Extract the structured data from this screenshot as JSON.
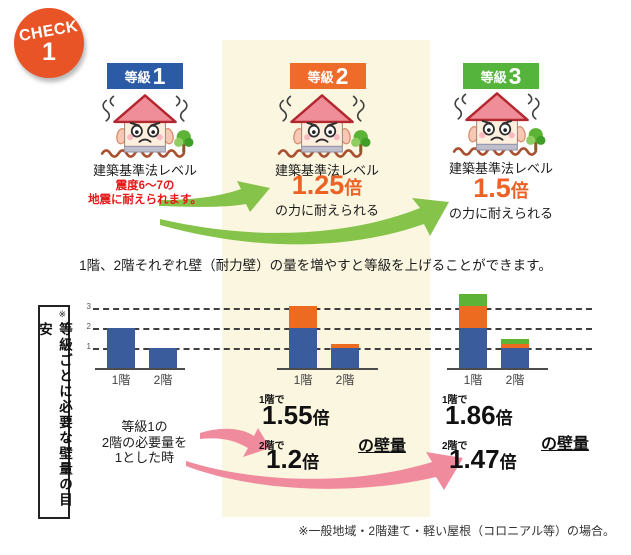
{
  "badge_check": {
    "line1": "CHECK",
    "line2": "1"
  },
  "grades": [
    {
      "label": "等級",
      "number": "1",
      "badge_color": "#2b5aa7",
      "level_text": "建築基準法レベル",
      "sub_red_line1": "震度6〜7の",
      "sub_red_line2": "地震に耐えられます。"
    },
    {
      "label": "等級",
      "number": "2",
      "badge_color": "#ee6b2a",
      "level_text": "建築基準法レベル",
      "multiplier": "1.25",
      "multiplier_unit": "倍",
      "multiplier_desc": "の力に耐えられる"
    },
    {
      "label": "等級",
      "number": "3",
      "badge_color": "#55b43b",
      "level_text": "建築基準法レベル",
      "multiplier": "1.5",
      "multiplier_unit": "倍",
      "multiplier_desc": "の力に耐えられる"
    }
  ],
  "middle_caption": "1階、2階それぞれ壁（耐力壁）の量を増やすと等級を上げることができます。",
  "side_box": {
    "note_mark": "※",
    "text": "等級ごとに必要な壁量の目安"
  },
  "baseline_note": {
    "line1": "等級1の",
    "line2": "2階の必要量を",
    "line3": "1とした時"
  },
  "wall_amounts": {
    "grade2": {
      "floor1_label": "1階で",
      "floor1_value": "1.55",
      "floor2_label": "2階で",
      "floor2_value": "1.2",
      "unit": "倍",
      "suffix": "の壁量"
    },
    "grade3": {
      "floor1_label": "1階で",
      "floor1_value": "1.86",
      "floor2_label": "2階で",
      "floor2_value": "1.47",
      "unit": "倍",
      "suffix": "の壁量"
    }
  },
  "footnote": "※一般地域・2階建て・軽い屋根（コロニアル等）の場合。",
  "accent_colors": {
    "check_badge": "#e85426",
    "orange_text": "#ed6224",
    "red_text": "#e61919",
    "green_arrow": "#86c34a",
    "pink_arrow": "#ef8b9d",
    "highlight_column": "#fbf6df"
  },
  "chart_data": {
    "type": "bar",
    "title": "等級ごとに必要な壁量の目安",
    "note": "等級1の2階の必要量を1とした時",
    "categories": [
      "1階",
      "2階"
    ],
    "yticks": [
      1,
      2,
      3
    ],
    "ylim": [
      0,
      4
    ],
    "grid": "dashed-horizontal",
    "colors": {
      "grade1": "#3a5b9c",
      "grade2_add": "#ed6b21",
      "grade3_add": "#5cb335"
    },
    "charts": [
      {
        "grade": "等級1",
        "bars": [
          {
            "category": "1階",
            "total": 2,
            "segments": [
              {
                "color": "grade1",
                "value": 2
              }
            ]
          },
          {
            "category": "2階",
            "total": 1,
            "segments": [
              {
                "color": "grade1",
                "value": 1
              }
            ]
          }
        ]
      },
      {
        "grade": "等級2",
        "multiplier_floor1": "1.55倍",
        "multiplier_floor2": "1.2倍",
        "bars": [
          {
            "category": "1階",
            "total": 3.1,
            "segments": [
              {
                "color": "grade1",
                "value": 2
              },
              {
                "color": "grade2_add",
                "value": 1.1
              }
            ]
          },
          {
            "category": "2階",
            "total": 1.2,
            "segments": [
              {
                "color": "grade1",
                "value": 1
              },
              {
                "color": "grade2_add",
                "value": 0.2
              }
            ]
          }
        ]
      },
      {
        "grade": "等級3",
        "multiplier_floor1": "1.86倍",
        "multiplier_floor2": "1.47倍",
        "bars": [
          {
            "category": "1階",
            "total": 3.72,
            "segments": [
              {
                "color": "grade1",
                "value": 2
              },
              {
                "color": "grade2_add",
                "value": 1.1
              },
              {
                "color": "grade3_add",
                "value": 0.62
              }
            ]
          },
          {
            "category": "2階",
            "total": 1.47,
            "segments": [
              {
                "color": "grade1",
                "value": 1
              },
              {
                "color": "grade2_add",
                "value": 0.2
              },
              {
                "color": "grade3_add",
                "value": 0.27
              }
            ]
          }
        ]
      }
    ]
  }
}
